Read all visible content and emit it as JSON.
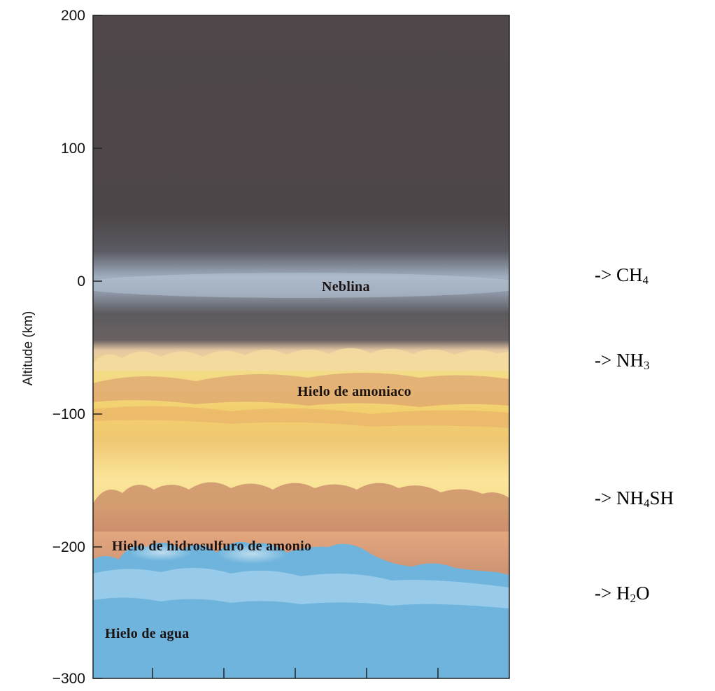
{
  "axis": {
    "title": "Altitude (km)",
    "range_km": [
      -300,
      200
    ],
    "ticks": [
      {
        "value": 200,
        "label": "200"
      },
      {
        "value": 100,
        "label": "100"
      },
      {
        "value": 0,
        "label": "0"
      },
      {
        "value": -100,
        "label": "−100"
      },
      {
        "value": -200,
        "label": "−200"
      },
      {
        "value": -300,
        "label": "−300"
      }
    ]
  },
  "layers": {
    "haze": "Neblina",
    "ammonia_ice": "Hielo de amoniaco",
    "ammonium_hydrosulfide_ice": "Hielo de hidrosulfuro de amonio",
    "water_ice": "Hielo de agua"
  },
  "gases": [
    {
      "prefix": "-> ",
      "parts": [
        {
          "text": "CH"
        },
        {
          "text": "4",
          "sub": true
        }
      ]
    },
    {
      "prefix": "-> ",
      "parts": [
        {
          "text": "NH"
        },
        {
          "text": "3",
          "sub": true
        }
      ]
    },
    {
      "prefix": "-> ",
      "parts": [
        {
          "text": "NH"
        },
        {
          "text": "4",
          "sub": true
        },
        {
          "text": "SH"
        }
      ]
    },
    {
      "prefix": "-> ",
      "parts": [
        {
          "text": "H"
        },
        {
          "text": "2",
          "sub": true
        },
        {
          "text": "O"
        }
      ]
    }
  ],
  "colors": {
    "upper_atmosphere": "#4d4547",
    "haze": "#a6b4c6",
    "ammonia_cloud": "#e9c25a",
    "hydrosulfide_cloud": "#c98a6a",
    "water_cloud": "#6fb4dc"
  }
}
